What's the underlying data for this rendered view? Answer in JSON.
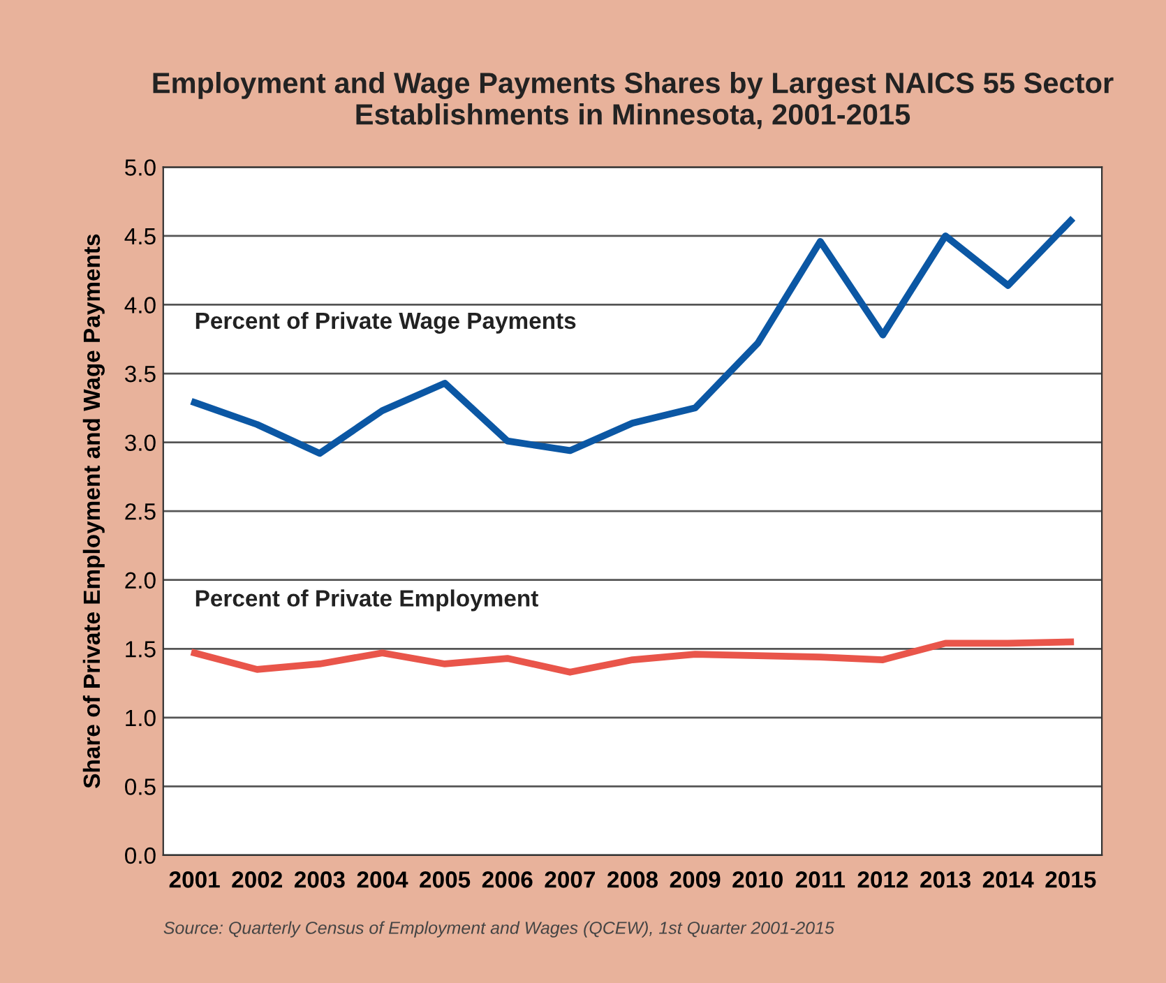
{
  "chart_data": {
    "type": "line",
    "title": "Employment and Wage Payments Shares by Largest NAICS 55 Sector\nEstablishments in Minnesota, 2001-2015",
    "ylabel": "Share of Private Employment and Wage Payments",
    "categories": [
      "2001",
      "2002",
      "2003",
      "2004",
      "2005",
      "2006",
      "2007",
      "2008",
      "2009",
      "2010",
      "2011",
      "2012",
      "2013",
      "2014",
      "2015"
    ],
    "series": [
      {
        "name": "Percent of Private Wage Payments",
        "color": "#0b57a4",
        "values": [
          3.29,
          3.13,
          2.92,
          3.23,
          3.43,
          3.01,
          2.94,
          3.14,
          3.25,
          3.72,
          4.46,
          3.78,
          4.5,
          4.14,
          4.61
        ]
      },
      {
        "name": "Percent of Private Employment",
        "color": "#e9554a",
        "values": [
          1.47,
          1.35,
          1.39,
          1.47,
          1.39,
          1.43,
          1.33,
          1.42,
          1.46,
          1.45,
          1.44,
          1.42,
          1.54,
          1.54,
          1.55
        ]
      }
    ],
    "ylim": [
      0,
      5
    ],
    "yticks": [
      {
        "value": 0,
        "label": "0.0"
      },
      {
        "value": 0.5,
        "label": "0.5"
      },
      {
        "value": 1,
        "label": "1.0"
      },
      {
        "value": 1.5,
        "label": "1.5"
      },
      {
        "value": 2,
        "label": "2.0"
      },
      {
        "value": 2.5,
        "label": "2.5"
      },
      {
        "value": 3,
        "label": "3.0"
      },
      {
        "value": 3.5,
        "label": "3.5"
      },
      {
        "value": 4,
        "label": "4.0"
      },
      {
        "value": 4.5,
        "label": "4.5"
      },
      {
        "value": 5,
        "label": "5.0"
      }
    ],
    "grid": "y",
    "legend": false,
    "marker": "none",
    "line_style": "solid",
    "annotations": [
      "Source: Quarterly Census of Employment and Wages (QCEW), 1st Quarter 2001-2015"
    ]
  }
}
